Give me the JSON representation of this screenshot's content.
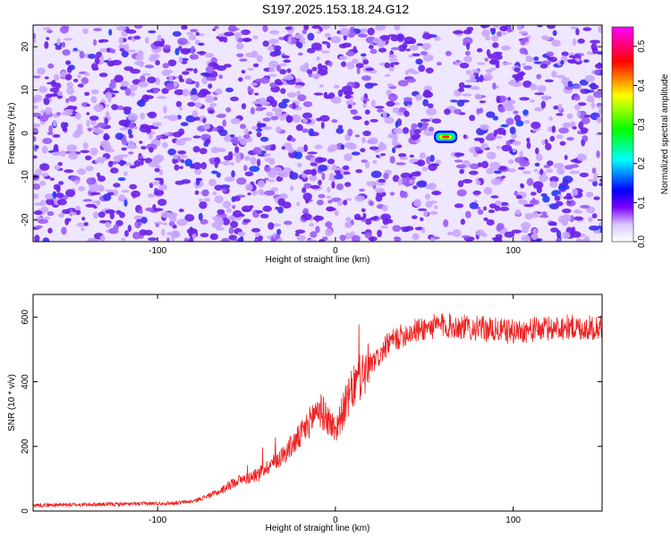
{
  "title": "S197.2025.153.18.24.G12",
  "chart_data": [
    {
      "type": "heatmap",
      "xlabel": "Height of straight line (km)",
      "ylabel": "Frequency (Hz)",
      "xlim": [
        -170,
        150
      ],
      "ylim": [
        -25,
        25
      ],
      "x_ticks": [
        -100,
        0,
        100
      ],
      "y_ticks": [
        20,
        10,
        0,
        -10,
        -20
      ],
      "colorbar": {
        "label": "Normalized spectral amplitude",
        "range": [
          0.0,
          0.55
        ],
        "ticks": [
          0.0,
          0.1,
          0.2,
          0.3,
          0.4,
          0.5
        ],
        "colors": [
          "#ffffff",
          "#7b00ff",
          "#0000ff",
          "#00ffff",
          "#00ff00",
          "#ffff00",
          "#ff0000",
          "#ff00ff"
        ]
      },
      "features": [
        {
          "x": 62,
          "y": -0.8,
          "value": 0.5
        }
      ],
      "quiet_band_x": [
        57,
        68
      ]
    },
    {
      "type": "line",
      "xlabel": "Height of straight line (km)",
      "ylabel": "SNR (10 * v/v)",
      "xlim": [
        -170,
        150
      ],
      "ylim": [
        0,
        670
      ],
      "x_ticks": [
        -100,
        0,
        100
      ],
      "y_ticks": [
        0,
        200,
        400,
        600
      ],
      "series": [
        {
          "color": "#ee2222",
          "x": [
            -170,
            -140,
            -110,
            -90,
            -80,
            -75,
            -70,
            -65,
            -60,
            -55,
            -50,
            -45,
            -40,
            -35,
            -30,
            -25,
            -20,
            -15,
            -10,
            -5,
            0,
            5,
            10,
            15,
            20,
            25,
            30,
            40,
            50,
            60,
            70,
            80,
            90,
            100,
            110,
            120,
            130,
            140,
            150
          ],
          "values": [
            18,
            20,
            22,
            25,
            30,
            40,
            50,
            60,
            80,
            95,
            100,
            110,
            130,
            150,
            170,
            200,
            230,
            270,
            320,
            290,
            250,
            320,
            380,
            420,
            450,
            480,
            520,
            550,
            565,
            575,
            570,
            565,
            560,
            555,
            560,
            565,
            570,
            565,
            570
          ]
        }
      ]
    }
  ]
}
